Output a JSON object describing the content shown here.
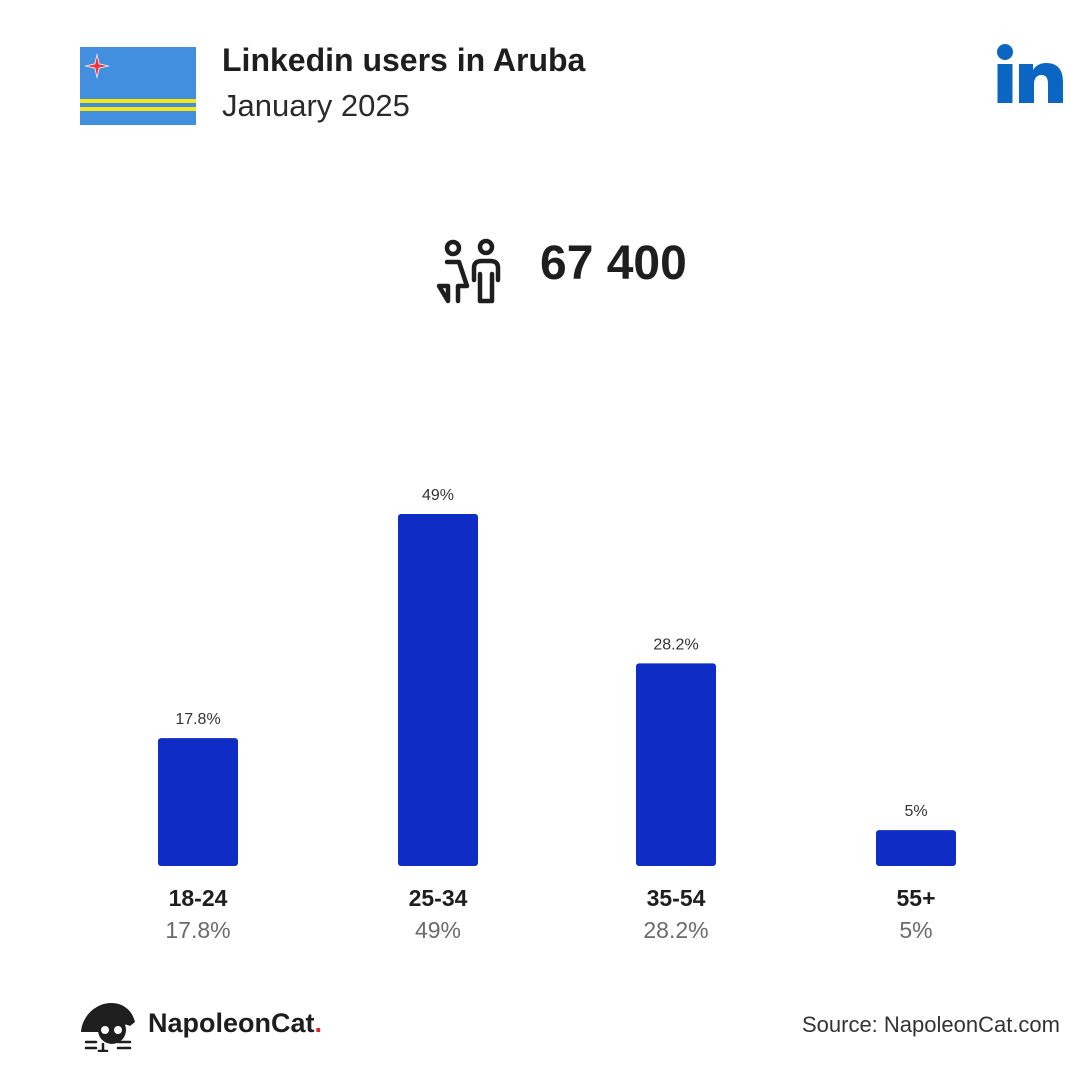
{
  "header": {
    "title": "Linkedin users in Aruba",
    "subtitle": "January 2025"
  },
  "summary": {
    "total_users": "67 400",
    "icon": "people-icon"
  },
  "colors": {
    "bar": "#0f2cc4",
    "flag_blue": "#418fde",
    "flag_yellow": "#f9e814",
    "flag_star": "#ef3340",
    "linkedin": "#0a66c2"
  },
  "chart_data": {
    "type": "bar",
    "categories": [
      "18-24",
      "25-34",
      "35-54",
      "55+"
    ],
    "values": [
      17.8,
      49,
      28.2,
      5
    ],
    "value_labels": [
      "17.8%",
      "49%",
      "28.2%",
      "5%"
    ],
    "ylim": [
      0,
      49
    ],
    "grid": false
  },
  "footer": {
    "brand": "NapoleonCat",
    "brand_dot": ".",
    "source": "Source: NapoleonCat.com"
  }
}
